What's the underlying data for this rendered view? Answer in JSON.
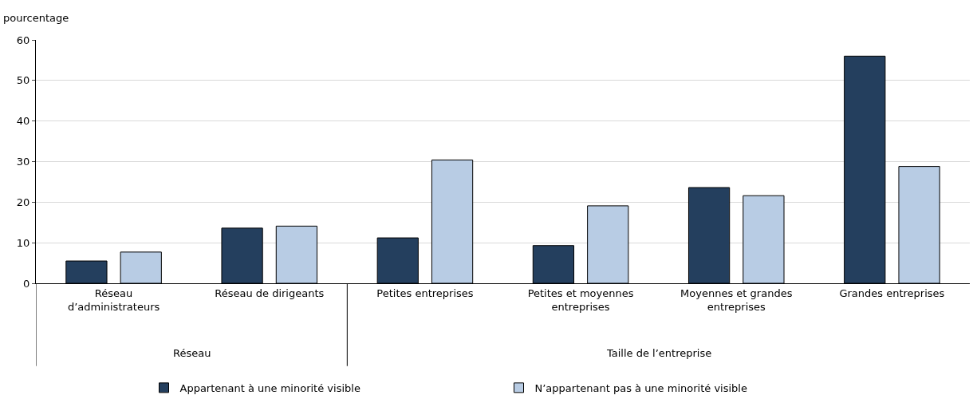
{
  "chart_data": {
    "type": "bar",
    "ylabel": "pourcentage",
    "categories": [
      "Réseau d’administrateurs",
      "Réseau de dirigeants",
      "Petites entreprises",
      "Petites et moyennes entreprises",
      "Moyennes et grandes entreprises",
      "Grandes entreprises"
    ],
    "series": [
      {
        "name": "Appartenant à une minorité visible",
        "color": "#243f5e",
        "values": [
          5.5,
          13.6,
          11.2,
          9.3,
          23.6,
          56
        ]
      },
      {
        "name": "N’appartenant pas à une minorité visible",
        "color": "#b8cce4",
        "values": [
          7.7,
          14.1,
          30.4,
          19.1,
          21.6,
          28.8
        ]
      }
    ],
    "annotations": [
      "Réseau",
      "Taille de l’entreprise"
    ],
    "ylim": [
      0,
      60
    ],
    "yticks": [
      0,
      10,
      20,
      30,
      40,
      50,
      60
    ],
    "grid": "y",
    "legend": "bottom"
  }
}
